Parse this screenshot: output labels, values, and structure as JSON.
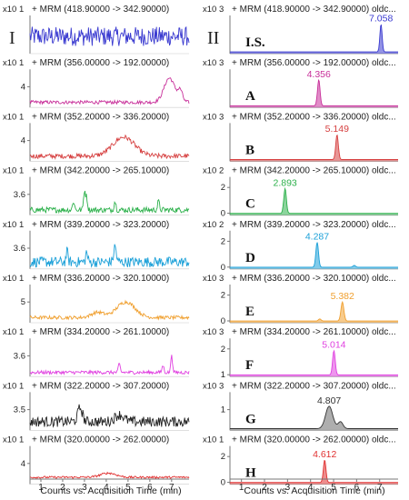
{
  "left_column": {
    "roman": "I",
    "xlabel": "Counts vs. Acquisition Time (min)",
    "xticks": [
      "1",
      "2",
      "3",
      "4",
      "5",
      "6",
      "7"
    ]
  },
  "right_column": {
    "roman": "II",
    "xlabel": "Counts vs. Acquisition Time (min)",
    "xticks": [
      "1",
      "2",
      "3",
      "4",
      "5",
      "6",
      "7"
    ]
  },
  "chart_data": [
    {
      "type": "line",
      "column": "I",
      "title": "+ MRM (418.90000 -> 342.90000)",
      "exp_label": "x10 1",
      "yticks": [],
      "color": "#3a3ad0",
      "baseline": 0.5,
      "noise": 0.28,
      "features": [],
      "xlim": [
        0.5,
        7.8
      ]
    },
    {
      "type": "line",
      "column": "I",
      "title": "+ MRM (356.00000 -> 192.00000)",
      "exp_label": "x10 1",
      "yticks": [
        "4"
      ],
      "color": "#c8309a",
      "baseline": 0.15,
      "noise": 0.05,
      "features": [
        {
          "x": 6.9,
          "h": 0.7,
          "w": 0.35
        },
        {
          "x": 7.4,
          "h": 0.3,
          "w": 0.15
        }
      ],
      "xlim": [
        0.5,
        7.8
      ]
    },
    {
      "type": "line",
      "column": "I",
      "title": "+ MRM (352.20000 -> 336.20000)",
      "exp_label": "x10 1",
      "yticks": [
        "4"
      ],
      "color": "#d64040",
      "baseline": 0.15,
      "noise": 0.07,
      "features": [
        {
          "x": 4.8,
          "h": 0.55,
          "w": 0.7
        }
      ],
      "xlim": [
        0.5,
        7.8
      ]
    },
    {
      "type": "line",
      "column": "I",
      "title": "+ MRM (342.20000 -> 265.10000)",
      "exp_label": "x10 1",
      "yticks": [
        "3.6"
      ],
      "color": "#2bb04a",
      "baseline": 0.15,
      "noise": 0.08,
      "features": [
        {
          "x": 3.0,
          "h": 0.55,
          "w": 0.06
        },
        {
          "x": 3.1,
          "h": 0.35,
          "w": 0.06
        },
        {
          "x": 2.5,
          "h": 0.25,
          "w": 0.06
        },
        {
          "x": 4.4,
          "h": 0.25,
          "w": 0.06
        },
        {
          "x": 6.4,
          "h": 0.25,
          "w": 0.06
        }
      ],
      "xlim": [
        0.5,
        7.8
      ]
    },
    {
      "type": "line",
      "column": "I",
      "title": "+ MRM (339.20000 -> 323.20000)",
      "exp_label": "x10 1",
      "yticks": [
        "3.6"
      ],
      "color": "#1ba0d8",
      "baseline": 0.2,
      "noise": 0.15,
      "features": [
        {
          "x": 4.4,
          "h": 0.45,
          "w": 0.08
        },
        {
          "x": 3.1,
          "h": 0.3,
          "w": 0.06
        },
        {
          "x": 2.2,
          "h": 0.3,
          "w": 0.06
        }
      ],
      "xlim": [
        0.5,
        7.8
      ]
    },
    {
      "type": "line",
      "column": "I",
      "title": "+ MRM (336.20000 -> 320.10000)",
      "exp_label": "x10 1",
      "yticks": [
        "5"
      ],
      "color": "#f0a030",
      "baseline": 0.15,
      "noise": 0.05,
      "features": [
        {
          "x": 4.9,
          "h": 0.45,
          "w": 0.6
        },
        {
          "x": 3.6,
          "h": 0.15,
          "w": 0.4
        }
      ],
      "xlim": [
        0.5,
        7.8
      ]
    },
    {
      "type": "line",
      "column": "I",
      "title": "+ MRM (334.20000 -> 261.10000)",
      "exp_label": "x10 1",
      "yticks": [
        "3.6"
      ],
      "color": "#e040e0",
      "baseline": 0.12,
      "noise": 0.05,
      "features": [
        {
          "x": 7.0,
          "h": 0.55,
          "w": 0.05
        },
        {
          "x": 4.6,
          "h": 0.25,
          "w": 0.06
        },
        {
          "x": 6.6,
          "h": 0.2,
          "w": 0.06
        }
      ],
      "xlim": [
        0.5,
        7.8
      ]
    },
    {
      "type": "line",
      "column": "I",
      "title": "+ MRM (322.20000 -> 307.20000)",
      "exp_label": "x10 1",
      "yticks": [
        "3.5"
      ],
      "color": "#222222",
      "baseline": 0.25,
      "noise": 0.15,
      "features": [
        {
          "x": 2.8,
          "h": 0.4,
          "w": 0.15
        },
        {
          "x": 4.6,
          "h": 0.2,
          "w": 0.3
        }
      ],
      "xlim": [
        0.5,
        7.8
      ]
    },
    {
      "type": "line",
      "column": "I",
      "title": "+ MRM (320.00000 -> 262.00000)",
      "exp_label": "x10 1",
      "yticks": [
        "4"
      ],
      "color": "#e03030",
      "baseline": 0.2,
      "noise": 0.03,
      "features": [
        {
          "x": 4.1,
          "h": 0.12,
          "w": 0.5
        }
      ],
      "xlim": [
        0.5,
        7.8
      ]
    },
    {
      "type": "line",
      "column": "II",
      "title": "+ MRM (418.90000 -> 342.90000) oldc...",
      "exp_label": "x10 3",
      "yticks": [],
      "color": "#3a3ad0",
      "fill": true,
      "baseline": 0.05,
      "noise": 0.0,
      "features": [
        {
          "x": 7.058,
          "h": 0.8,
          "w": 0.07
        }
      ],
      "peak": {
        "label": "7.058",
        "x": 7.058
      },
      "compound": "I.S.",
      "xlim": [
        0.5,
        7.8
      ]
    },
    {
      "type": "line",
      "column": "II",
      "title": "+ MRM (356.00000 -> 192.00000) oldc...",
      "exp_label": "x10 3",
      "yticks": [],
      "color": "#c8309a",
      "fill": true,
      "baseline": 0.05,
      "noise": 0.0,
      "features": [
        {
          "x": 4.356,
          "h": 0.75,
          "w": 0.08
        }
      ],
      "peak": {
        "label": "4.356",
        "x": 4.356
      },
      "compound": "A",
      "xlim": [
        0.5,
        7.8
      ]
    },
    {
      "type": "line",
      "column": "II",
      "title": "+ MRM (352.20000 -> 336.20000) oldc...",
      "exp_label": "x10 3",
      "yticks": [],
      "color": "#d64040",
      "fill": true,
      "baseline": 0.05,
      "noise": 0.0,
      "features": [
        {
          "x": 5.149,
          "h": 0.72,
          "w": 0.08
        }
      ],
      "peak": {
        "label": "5.149",
        "x": 5.149
      },
      "compound": "B",
      "xlim": [
        0.5,
        7.8
      ]
    },
    {
      "type": "line",
      "column": "II",
      "title": "+ MRM (342.20000 -> 265.10000) oldc...",
      "exp_label": "x10 2",
      "yticks": [
        "2",
        "0"
      ],
      "color": "#2bb04a",
      "fill": true,
      "baseline": 0.05,
      "noise": 0.0,
      "features": [
        {
          "x": 2.893,
          "h": 0.72,
          "w": 0.08
        }
      ],
      "peak": {
        "label": "2.893",
        "x": 2.893
      },
      "compound": "C",
      "xlim": [
        0.5,
        7.8
      ]
    },
    {
      "type": "line",
      "column": "II",
      "title": "+ MRM (339.20000 -> 323.20000) oldc...",
      "exp_label": "x10 2",
      "yticks": [
        "2",
        "0"
      ],
      "color": "#1ba0d8",
      "fill": true,
      "baseline": 0.05,
      "noise": 0.0,
      "features": [
        {
          "x": 4.287,
          "h": 0.72,
          "w": 0.08
        },
        {
          "x": 5.9,
          "h": 0.05,
          "w": 0.08
        }
      ],
      "peak": {
        "label": "4.287",
        "x": 4.287
      },
      "compound": "D",
      "xlim": [
        0.5,
        7.8
      ]
    },
    {
      "type": "line",
      "column": "II",
      "title": "+ MRM (336.20000 -> 320.10000) oldc...",
      "exp_label": "x10 3",
      "yticks": [
        "2",
        "0"
      ],
      "color": "#f0a030",
      "fill": true,
      "baseline": 0.05,
      "noise": 0.0,
      "features": [
        {
          "x": 5.382,
          "h": 0.55,
          "w": 0.09
        },
        {
          "x": 4.4,
          "h": 0.06,
          "w": 0.08
        }
      ],
      "peak": {
        "label": "5.382",
        "x": 5.382
      },
      "compound": "E",
      "xlim": [
        0.5,
        7.8
      ]
    },
    {
      "type": "line",
      "column": "II",
      "title": "+ MRM (334.20000 -> 261.10000) oldc...",
      "exp_label": "x10 3",
      "yticks": [
        "2",
        "1"
      ],
      "color": "#e040e0",
      "fill": true,
      "baseline": 0.05,
      "noise": 0.0,
      "features": [
        {
          "x": 5.014,
          "h": 0.7,
          "w": 0.08
        }
      ],
      "peak": {
        "label": "5.014",
        "x": 5.014
      },
      "compound": "F",
      "xlim": [
        0.5,
        7.8
      ]
    },
    {
      "type": "line",
      "column": "II",
      "title": "+ MRM (322.20000 -> 307.20000) oldc...",
      "exp_label": "x10 3",
      "yticks": [
        "1"
      ],
      "color": "#333333",
      "fill": true,
      "fillColor": "#9a9a9a",
      "baseline": 0.05,
      "noise": 0.0,
      "features": [
        {
          "x": 4.807,
          "h": 0.65,
          "w": 0.22
        },
        {
          "x": 5.3,
          "h": 0.2,
          "w": 0.15
        }
      ],
      "peak": {
        "label": "4.807",
        "x": 4.807
      },
      "compound": "G",
      "xlim": [
        0.5,
        7.8
      ]
    },
    {
      "type": "line",
      "column": "II",
      "title": "+ MRM (320.00000 -> 262.00000) oldc...",
      "exp_label": "x10 1",
      "yticks": [
        "2",
        "0"
      ],
      "color": "#e03030",
      "fill": true,
      "baseline": 0.05,
      "noise": 0.0,
      "features": [
        {
          "x": 4.612,
          "h": 0.65,
          "w": 0.08
        }
      ],
      "peak": {
        "label": "4.612",
        "x": 4.612
      },
      "compound": "H",
      "xlim": [
        0.5,
        7.8
      ]
    }
  ]
}
